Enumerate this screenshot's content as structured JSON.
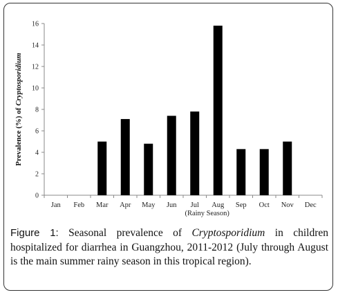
{
  "chart_data": {
    "type": "bar",
    "categories": [
      "Jan",
      "Feb",
      "Mar",
      "Apr",
      "May",
      "Jun",
      "Jul",
      "Aug",
      "Sep",
      "Oct",
      "Nov",
      "Dec"
    ],
    "category_sublabels": [
      "",
      "",
      "",
      "",
      "",
      "",
      "(Rainy",
      "Season)",
      "",
      "",
      "",
      ""
    ],
    "values": [
      0,
      0,
      5.0,
      7.1,
      4.8,
      7.4,
      7.8,
      15.8,
      4.3,
      4.3,
      5.0,
      0
    ],
    "ylim": [
      0,
      16
    ],
    "yticks": [
      0,
      2,
      4,
      6,
      8,
      10,
      12,
      14,
      16
    ],
    "ylabel_prefix": "Prevalence (%) of ",
    "ylabel_italic": "Cryptosporidium",
    "xlabel": "",
    "title": "",
    "bar_color": "#000000",
    "grid": false,
    "legend": "none"
  },
  "caption": {
    "label": "Figure",
    "number": " 1:",
    "text_before": " Seasonal prevalence of ",
    "italic_term": "Cryptosporidium",
    "text_after": " in children hospitalized for diarrhea in Guangzhou, 2011-2012 (July through August is the main summer rainy season in this tropical region)."
  }
}
